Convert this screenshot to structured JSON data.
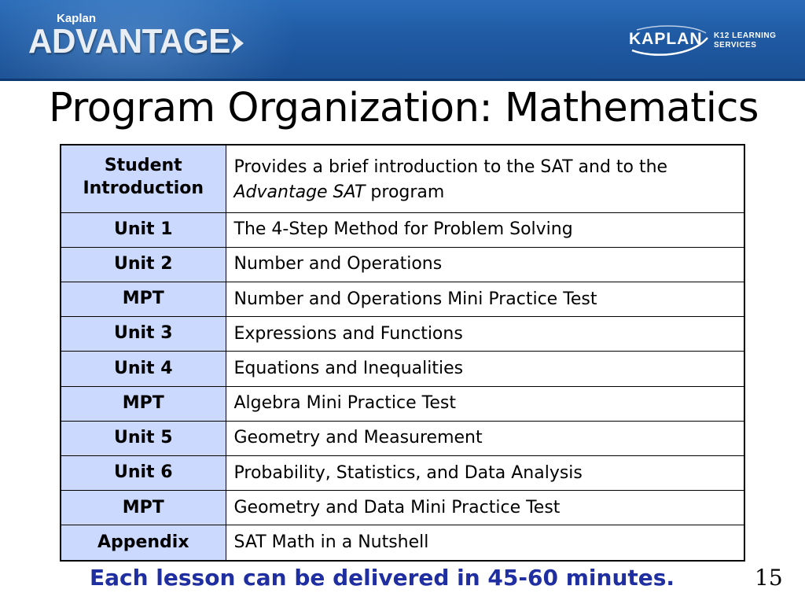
{
  "header": {
    "brand_small": "Kaplan",
    "brand_big": "ADVANTAGE",
    "partner_word": "KAPLAN",
    "partner_line1": "K12 LEARNING",
    "partner_line2": "SERVICES",
    "colors": {
      "banner": "#1f5aa3",
      "label_cell": "#ccd9ff",
      "footer_text": "#1f2ea0"
    }
  },
  "slide": {
    "title": "Program Organization: Mathematics",
    "footer": "Each lesson can be delivered in 45-60 minutes.",
    "page_number": "15"
  },
  "table": {
    "intro": {
      "label_line1": "Student",
      "label_line2": "Introduction",
      "desc_line1": "Provides a brief introduction to the SAT and to the",
      "desc_italic": "Advantage SAT",
      "desc_tail": " program"
    },
    "rows": [
      {
        "label": "Unit 1",
        "desc": "The 4-Step Method for Problem Solving"
      },
      {
        "label": "Unit 2",
        "desc": "Number and Operations"
      },
      {
        "label": "MPT",
        "desc": "Number and Operations Mini Practice Test"
      },
      {
        "label": "Unit 3",
        "desc": "Expressions and Functions"
      },
      {
        "label": "Unit 4",
        "desc": "Equations and Inequalities"
      },
      {
        "label": "MPT",
        "desc": "Algebra Mini Practice Test"
      },
      {
        "label": "Unit 5",
        "desc": "Geometry and Measurement"
      },
      {
        "label": "Unit 6",
        "desc": "Probability, Statistics, and Data Analysis"
      },
      {
        "label": "MPT",
        "desc": "Geometry and Data Mini Practice Test"
      },
      {
        "label": "Appendix",
        "desc": "SAT Math in a Nutshell"
      }
    ]
  }
}
